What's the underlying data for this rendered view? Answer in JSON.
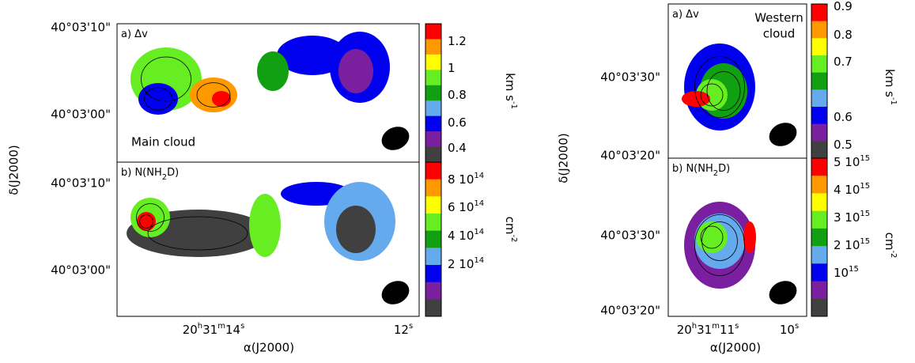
{
  "figures": [
    {
      "ylabel": "δ(J2000)",
      "xlabel": "α(J2000)",
      "xticks": [
        [
          "20",
          "h",
          "31",
          "m",
          "14",
          "s"
        ],
        [
          "12",
          "s"
        ]
      ],
      "panels": [
        {
          "label": [
            "a) Δv"
          ],
          "annotation": [
            "Main cloud"
          ],
          "yticks": [
            "40°03'10\"",
            "40°03'00\""
          ],
          "colorbar_ticks": [
            [
              "1.2"
            ],
            [
              "1"
            ],
            [
              "0.8"
            ],
            [
              "0.6"
            ],
            [
              "0.4"
            ]
          ],
          "colorbar_unit": [
            "km s",
            "-1"
          ]
        },
        {
          "label": [
            "b) N(NH",
            "2",
            "D)"
          ],
          "yticks": [
            "40°03'10\"",
            "40°03'00\""
          ],
          "colorbar_ticks": [
            [
              "8 10",
              "14"
            ],
            [
              "6 10",
              "14"
            ],
            [
              "4 10",
              "14"
            ],
            [
              "2 10",
              "14"
            ]
          ],
          "colorbar_unit": [
            "cm",
            "-2"
          ]
        }
      ]
    },
    {
      "ylabel": "δ(J2000)",
      "xlabel": "α(J2000)",
      "xticks": [
        [
          "20",
          "h",
          "31",
          "m",
          "11",
          "s"
        ],
        [
          "10",
          "s"
        ]
      ],
      "panels": [
        {
          "label": [
            "a) Δv"
          ],
          "annotation": [
            "Western",
            "cloud"
          ],
          "yticks": [
            "40°03'30\"",
            "40°03'20\""
          ],
          "colorbar_ticks": [
            [
              "0.9"
            ],
            [
              "0.8"
            ],
            [
              "0.7"
            ],
            [
              "0.6"
            ],
            [
              "0.5"
            ]
          ],
          "colorbar_unit": [
            "km s",
            "-1"
          ]
        },
        {
          "label": [
            "b) N(NH",
            "2",
            "D)"
          ],
          "yticks": [
            "40°03'30\"",
            "40°03'20\""
          ],
          "colorbar_ticks": [
            [
              "5 10",
              "15"
            ],
            [
              "4 10",
              "15"
            ],
            [
              "3 10",
              "15"
            ],
            [
              "2 10",
              "15"
            ],
            [
              "10",
              "15"
            ]
          ],
          "colorbar_unit": [
            "cm",
            "-2"
          ]
        }
      ]
    }
  ]
}
